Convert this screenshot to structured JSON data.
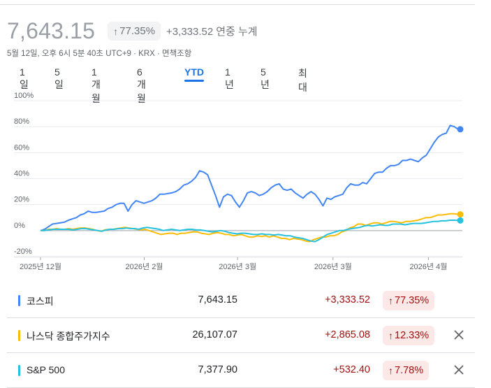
{
  "header": {
    "price": "7,643.15",
    "pct_change": "77.35%",
    "abs_change": "+3,333.52",
    "period_label": "연중 누계",
    "meta": "5월 12일, 오후 6시 5분 40초 UTC+9 · KRX · 면책조항"
  },
  "tabs": [
    {
      "label": "1일"
    },
    {
      "label": "5일"
    },
    {
      "label": "1개월"
    },
    {
      "label": "6개월"
    },
    {
      "label": "YTD",
      "active": true
    },
    {
      "label": "1년"
    },
    {
      "label": "5년"
    },
    {
      "label": "최대"
    }
  ],
  "chart_data": {
    "type": "line",
    "y_ticks": [
      "100%",
      "80%",
      "60%",
      "40%",
      "20%",
      "0%",
      "-20%"
    ],
    "ylim": [
      -20,
      100
    ],
    "x_ticks": [
      "2025년 12월",
      "2026년 2월",
      "2026년 3월",
      "2026년 3월",
      "2026년 4월"
    ],
    "x_tick_positions": [
      0,
      0.25,
      0.475,
      0.705,
      0.935
    ],
    "series": [
      {
        "name": "코스피",
        "color": "#4285f4",
        "values": [
          0,
          1,
          3,
          5,
          5.5,
          6,
          6.5,
          8,
          9,
          10,
          12,
          13,
          15,
          14,
          14,
          14.5,
          15,
          17,
          18,
          20,
          21,
          21,
          15,
          20,
          23,
          22,
          21,
          22,
          23,
          25,
          28,
          28,
          28.5,
          29,
          30,
          32,
          35,
          36,
          38,
          41,
          46,
          45,
          43,
          35,
          27,
          18,
          26,
          28,
          27,
          22,
          18,
          23,
          29,
          30,
          29,
          27,
          28,
          30,
          33,
          35,
          36,
          32,
          31,
          32,
          29,
          27,
          25,
          28,
          30,
          28,
          24,
          19,
          25,
          24,
          26,
          27,
          28,
          33,
          36,
          35,
          35,
          37,
          36,
          40,
          44,
          45,
          45,
          48,
          50,
          50,
          51,
          54,
          54,
          55,
          54,
          53,
          56,
          58,
          63,
          68,
          72,
          74,
          75,
          81,
          80,
          78
        ]
      },
      {
        "name": "나스닥 종합주가지수",
        "color": "#fbbc04",
        "values": [
          0,
          0,
          1,
          1,
          1.5,
          1,
          1,
          1.5,
          1,
          1.5,
          2,
          2,
          1.5,
          1,
          0,
          -0.5,
          0.5,
          1,
          1,
          1.5,
          2,
          2.5,
          2,
          1.5,
          1,
          0.5,
          1,
          0,
          -1,
          -2,
          -3,
          -2.5,
          -2,
          -2,
          -3,
          -2,
          -2,
          -1.5,
          -1,
          -1,
          -2,
          -2.5,
          -3,
          -2,
          -1.5,
          -2,
          -3,
          -3,
          -4,
          -3.5,
          -3,
          -4,
          -5,
          -5,
          -4,
          -4.5,
          -4,
          -5,
          -4,
          -5,
          -6,
          -6,
          -7,
          -6,
          -6.5,
          -7,
          -8,
          -8.5,
          -7,
          -6,
          -5,
          -5,
          -4,
          -4,
          -3,
          -1,
          0,
          2,
          3,
          5,
          5,
          4,
          5,
          6,
          6,
          5,
          6,
          7,
          7,
          6.5,
          6,
          7,
          7,
          7.5,
          8,
          9,
          10,
          10,
          11,
          12,
          12,
          12.5,
          13,
          13,
          12.5
        ]
      },
      {
        "name": "S&P 500",
        "color": "#24c1e0",
        "values": [
          0,
          0,
          0.5,
          1,
          1,
          1,
          1,
          1,
          0.5,
          1,
          1.5,
          1.5,
          1,
          0.5,
          0,
          -0.5,
          0.5,
          1,
          1,
          1.5,
          1.5,
          2,
          1.5,
          1.5,
          1,
          2,
          2.5,
          2,
          1.5,
          1,
          0,
          0.5,
          1,
          0.5,
          0,
          0.5,
          1,
          1,
          0.5,
          0.5,
          0,
          -0.5,
          -1,
          -0.5,
          0,
          -0.5,
          -1.5,
          -2,
          -2.5,
          -2,
          -2,
          -2.5,
          -3,
          -3,
          -2.5,
          -3,
          -3,
          -3.5,
          -3,
          -3.5,
          -4,
          -4,
          -5,
          -5.5,
          -6,
          -7,
          -8,
          -8.5,
          -7,
          -5,
          -3,
          -2,
          -1,
          0,
          0,
          1,
          1.5,
          2,
          2.5,
          3.5,
          4,
          3.5,
          4,
          4.5,
          4,
          4,
          5,
          5,
          5,
          4.5,
          5,
          5.5,
          5.5,
          5.5,
          6,
          6.5,
          7,
          7,
          7.5,
          7.5,
          8,
          8,
          7.8
        ]
      }
    ]
  },
  "legend": [
    {
      "name": "코스피",
      "value": "7,643.15",
      "change": "+3,333.52",
      "pct": "77.35%",
      "color": "#4285f4",
      "removable": false
    },
    {
      "name": "나스닥 종합주가지수",
      "value": "26,107.07",
      "change": "+2,865.08",
      "pct": "12.33%",
      "color": "#fbbc04",
      "removable": true
    },
    {
      "name": "S&P 500",
      "value": "7,377.90",
      "change": "+532.40",
      "pct": "7.78%",
      "color": "#24c1e0",
      "removable": true
    }
  ],
  "icons": {
    "up_arrow": "arrow-up-icon",
    "remove": "close-icon"
  }
}
